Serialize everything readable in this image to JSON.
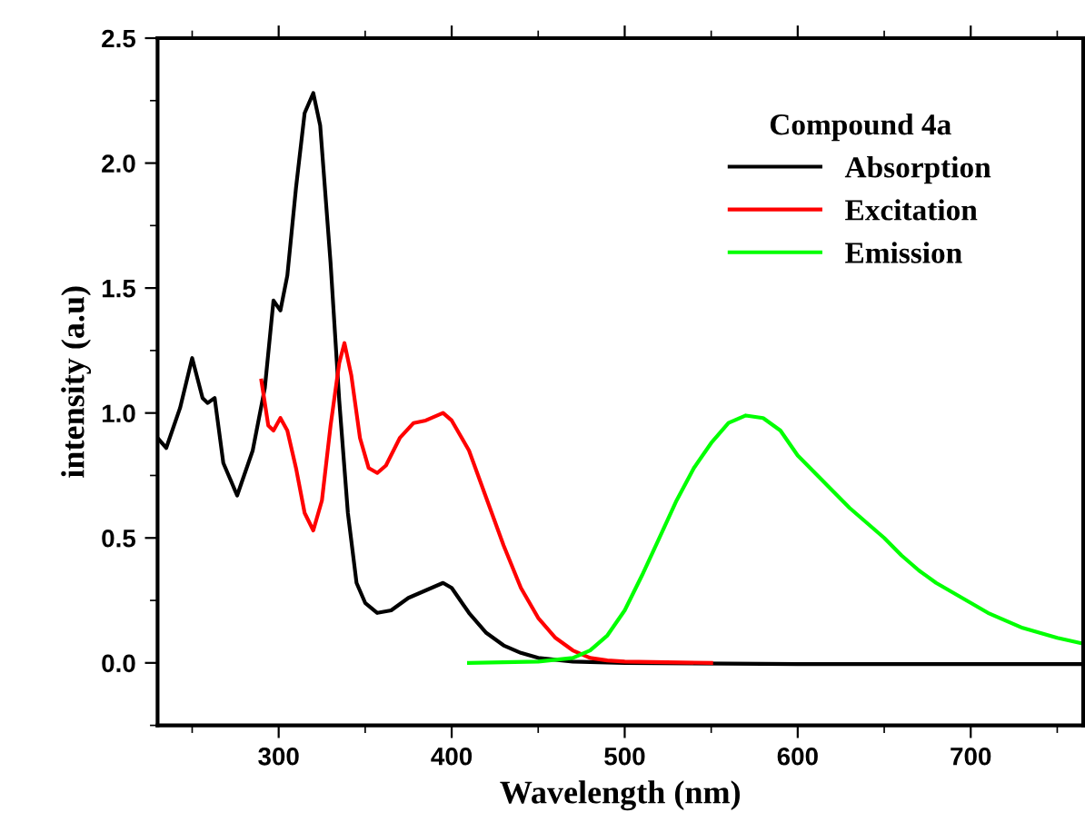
{
  "chart_data": {
    "type": "line",
    "xlabel": "Wavelength (nm)",
    "ylabel": "intensity (a.u)",
    "legend_title": "Compound 4a",
    "legend": "top right",
    "grid": false,
    "xlim": [
      230,
      765
    ],
    "xticks": [
      300,
      400,
      500,
      600,
      700
    ],
    "ylim": [
      -0.25,
      2.5
    ],
    "yticks": [
      {
        "value": 0,
        "label": "0.0"
      },
      0.5,
      {
        "value": 1,
        "label": "1.0"
      },
      1.5,
      {
        "value": 2,
        "label": "2.0"
      },
      2.5
    ],
    "series": [
      {
        "name": "Absorption",
        "color": "#000000",
        "x": [
          230,
          235,
          243,
          250,
          256,
          259,
          263,
          268,
          276,
          285,
          292,
          297,
          301,
          305,
          310,
          315,
          320,
          324,
          330,
          335,
          340,
          345,
          350,
          357,
          365,
          375,
          385,
          395,
          400,
          410,
          420,
          430,
          440,
          450,
          470,
          500,
          600,
          765
        ],
        "values": [
          0.9,
          0.86,
          1.02,
          1.22,
          1.06,
          1.04,
          1.06,
          0.8,
          0.67,
          0.85,
          1.1,
          1.45,
          1.41,
          1.55,
          1.9,
          2.2,
          2.28,
          2.15,
          1.6,
          1.05,
          0.6,
          0.32,
          0.24,
          0.2,
          0.21,
          0.26,
          0.29,
          0.32,
          0.3,
          0.2,
          0.12,
          0.07,
          0.04,
          0.02,
          0.005,
          0.0,
          -0.005,
          -0.005
        ]
      },
      {
        "name": "Excitation",
        "color": "#ff0000",
        "x": [
          290,
          294,
          297,
          301,
          305,
          310,
          315,
          320,
          325,
          330,
          335,
          338,
          342,
          347,
          352,
          357,
          362,
          370,
          378,
          385,
          395,
          400,
          410,
          420,
          430,
          440,
          450,
          460,
          470,
          480,
          490,
          500,
          550
        ],
        "values": [
          1.13,
          0.95,
          0.93,
          0.98,
          0.93,
          0.78,
          0.6,
          0.53,
          0.65,
          0.95,
          1.2,
          1.28,
          1.15,
          0.9,
          0.78,
          0.76,
          0.79,
          0.9,
          0.96,
          0.97,
          1.0,
          0.97,
          0.85,
          0.66,
          0.47,
          0.3,
          0.18,
          0.1,
          0.05,
          0.02,
          0.01,
          0.005,
          0.0
        ]
      },
      {
        "name": "Emission",
        "color": "#00ff00",
        "x": [
          410,
          450,
          470,
          480,
          490,
          500,
          510,
          520,
          530,
          540,
          550,
          560,
          570,
          580,
          590,
          600,
          610,
          620,
          630,
          640,
          650,
          660,
          670,
          680,
          690,
          700,
          710,
          720,
          730,
          740,
          750,
          763
        ],
        "values": [
          0.0,
          0.005,
          0.02,
          0.05,
          0.11,
          0.21,
          0.35,
          0.5,
          0.65,
          0.78,
          0.88,
          0.96,
          0.99,
          0.98,
          0.93,
          0.83,
          0.76,
          0.69,
          0.62,
          0.56,
          0.5,
          0.43,
          0.37,
          0.32,
          0.28,
          0.24,
          0.2,
          0.17,
          0.14,
          0.12,
          0.1,
          0.08
        ]
      }
    ]
  }
}
